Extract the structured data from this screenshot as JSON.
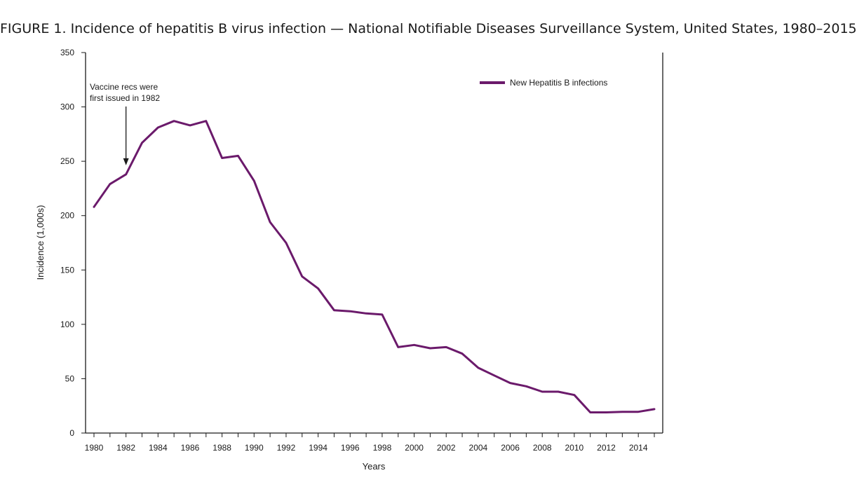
{
  "chart_data": {
    "type": "line",
    "title": "FIGURE 1. Incidence of hepatitis B virus infection — National Notifiable Diseases Surveillance System, United States, 1980–2015",
    "xlabel": "Years",
    "ylabel": "Incidence (1,000s)",
    "xlim": [
      1980,
      2015
    ],
    "ylim": [
      0,
      350
    ],
    "x_ticks": [
      "1980",
      "1982",
      "1984",
      "1986",
      "1988",
      "1990",
      "1992",
      "1994",
      "1996",
      "1998",
      "2000",
      "2002",
      "2004",
      "2006",
      "2008",
      "2010",
      "2012",
      "2014"
    ],
    "y_ticks": [
      "0",
      "50",
      "100",
      "150",
      "200",
      "250",
      "300",
      "350"
    ],
    "grid": false,
    "legend_position": "top-right",
    "series": [
      {
        "name": "New Hepatitis B infections",
        "color": "#6b1a6b",
        "x": [
          1980,
          1981,
          1982,
          1983,
          1984,
          1985,
          1986,
          1987,
          1988,
          1989,
          1990,
          1991,
          1992,
          1993,
          1994,
          1995,
          1996,
          1997,
          1998,
          1999,
          2000,
          2001,
          2002,
          2003,
          2004,
          2005,
          2006,
          2007,
          2008,
          2009,
          2010,
          2011,
          2012,
          2013,
          2014,
          2015
        ],
        "values": [
          208,
          229,
          238,
          267,
          281,
          287,
          283,
          287,
          253,
          255,
          232,
          194,
          175,
          144,
          133,
          113,
          112,
          110,
          109,
          79,
          81,
          78,
          79,
          73,
          60,
          53,
          46,
          43,
          38,
          38,
          35,
          19,
          19,
          19.5,
          19.5,
          22
        ]
      }
    ],
    "annotations": [
      {
        "lines": [
          "Vaccine recs were",
          "first issued in 1982"
        ],
        "x": 1982,
        "y": 245
      }
    ]
  }
}
